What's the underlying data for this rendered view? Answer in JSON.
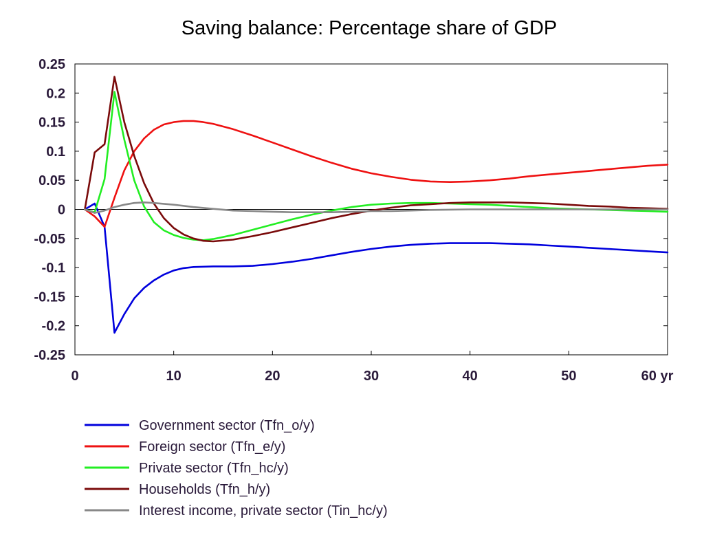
{
  "chart_data": {
    "type": "line",
    "title": "Saving balance: Percentage share of GDP",
    "xlabel": "",
    "ylabel": "",
    "x_unit_label": "yr",
    "xlim": [
      0,
      60
    ],
    "ylim": [
      -0.25,
      0.25
    ],
    "x_ticks": [
      0,
      10,
      20,
      30,
      40,
      50,
      60
    ],
    "x_tick_labels": [
      "0",
      "10",
      "20",
      "30",
      "40",
      "50",
      "60 yr"
    ],
    "y_ticks": [
      0.25,
      0.2,
      0.15,
      0.1,
      0.05,
      0,
      -0.05,
      -0.1,
      -0.15,
      -0.2,
      -0.25
    ],
    "y_tick_labels": [
      "0.25",
      "0.2",
      "0.15",
      "0.1",
      "0.05",
      "0",
      "-0.05",
      "-0.1",
      "-0.15",
      "-0.2",
      "-0.25"
    ],
    "grid": false,
    "zero_line": true,
    "legend_position": "bottom",
    "series": [
      {
        "name": "Government sector (Tfn_o/y)",
        "color": "#0000dd",
        "points": [
          [
            1,
            0
          ],
          [
            2,
            0.01
          ],
          [
            3,
            -0.03
          ],
          [
            4,
            -0.212
          ],
          [
            5,
            -0.18
          ],
          [
            6,
            -0.153
          ],
          [
            7,
            -0.135
          ],
          [
            8,
            -0.122
          ],
          [
            9,
            -0.112
          ],
          [
            10,
            -0.105
          ],
          [
            11,
            -0.101
          ],
          [
            12,
            -0.099
          ],
          [
            14,
            -0.098
          ],
          [
            16,
            -0.098
          ],
          [
            18,
            -0.097
          ],
          [
            20,
            -0.094
          ],
          [
            22,
            -0.09
          ],
          [
            24,
            -0.085
          ],
          [
            26,
            -0.079
          ],
          [
            28,
            -0.073
          ],
          [
            30,
            -0.068
          ],
          [
            32,
            -0.064
          ],
          [
            34,
            -0.061
          ],
          [
            36,
            -0.059
          ],
          [
            38,
            -0.058
          ],
          [
            40,
            -0.058
          ],
          [
            42,
            -0.058
          ],
          [
            44,
            -0.059
          ],
          [
            46,
            -0.06
          ],
          [
            48,
            -0.062
          ],
          [
            50,
            -0.064
          ],
          [
            52,
            -0.066
          ],
          [
            54,
            -0.068
          ],
          [
            56,
            -0.07
          ],
          [
            58,
            -0.072
          ],
          [
            60,
            -0.074
          ]
        ]
      },
      {
        "name": "Foreign sector (Tfn_e/y)",
        "color": "#ee1111",
        "points": [
          [
            1,
            0
          ],
          [
            2,
            -0.012
          ],
          [
            3,
            -0.03
          ],
          [
            4,
            0.02
          ],
          [
            5,
            0.067
          ],
          [
            6,
            0.1
          ],
          [
            7,
            0.122
          ],
          [
            8,
            0.137
          ],
          [
            9,
            0.146
          ],
          [
            10,
            0.15
          ],
          [
            11,
            0.152
          ],
          [
            12,
            0.152
          ],
          [
            13,
            0.15
          ],
          [
            14,
            0.147
          ],
          [
            16,
            0.138
          ],
          [
            18,
            0.127
          ],
          [
            20,
            0.115
          ],
          [
            22,
            0.103
          ],
          [
            24,
            0.091
          ],
          [
            26,
            0.08
          ],
          [
            28,
            0.07
          ],
          [
            30,
            0.062
          ],
          [
            32,
            0.056
          ],
          [
            34,
            0.051
          ],
          [
            36,
            0.048
          ],
          [
            38,
            0.047
          ],
          [
            40,
            0.048
          ],
          [
            42,
            0.05
          ],
          [
            44,
            0.053
          ],
          [
            46,
            0.057
          ],
          [
            48,
            0.06
          ],
          [
            50,
            0.063
          ],
          [
            52,
            0.066
          ],
          [
            54,
            0.069
          ],
          [
            56,
            0.072
          ],
          [
            58,
            0.075
          ],
          [
            60,
            0.077
          ]
        ]
      },
      {
        "name": "Private sector (Tfn_hc/y)",
        "color": "#22ee22",
        "points": [
          [
            1,
            0
          ],
          [
            2,
            -0.005
          ],
          [
            3,
            0.052
          ],
          [
            4,
            0.202
          ],
          [
            5,
            0.12
          ],
          [
            6,
            0.05
          ],
          [
            7,
            0.005
          ],
          [
            8,
            -0.022
          ],
          [
            9,
            -0.036
          ],
          [
            10,
            -0.044
          ],
          [
            11,
            -0.049
          ],
          [
            12,
            -0.052
          ],
          [
            13,
            -0.053
          ],
          [
            14,
            -0.051
          ],
          [
            16,
            -0.044
          ],
          [
            18,
            -0.035
          ],
          [
            20,
            -0.026
          ],
          [
            22,
            -0.017
          ],
          [
            24,
            -0.009
          ],
          [
            26,
            -0.002
          ],
          [
            28,
            0.004
          ],
          [
            30,
            0.008
          ],
          [
            32,
            0.01
          ],
          [
            34,
            0.011
          ],
          [
            36,
            0.011
          ],
          [
            38,
            0.01
          ],
          [
            40,
            0.009
          ],
          [
            42,
            0.008
          ],
          [
            44,
            0.006
          ],
          [
            46,
            0.004
          ],
          [
            48,
            0.002
          ],
          [
            50,
            0.001
          ],
          [
            52,
            0
          ],
          [
            54,
            -0.001
          ],
          [
            56,
            -0.002
          ],
          [
            58,
            -0.003
          ],
          [
            60,
            -0.004
          ]
        ]
      },
      {
        "name": "Households (Tfn_h/y)",
        "color": "#7a0a0a",
        "points": [
          [
            1,
            0
          ],
          [
            2,
            0.098
          ],
          [
            3,
            0.112
          ],
          [
            4,
            0.228
          ],
          [
            5,
            0.15
          ],
          [
            6,
            0.092
          ],
          [
            7,
            0.045
          ],
          [
            8,
            0.01
          ],
          [
            9,
            -0.015
          ],
          [
            10,
            -0.032
          ],
          [
            11,
            -0.043
          ],
          [
            12,
            -0.05
          ],
          [
            13,
            -0.054
          ],
          [
            14,
            -0.055
          ],
          [
            16,
            -0.052
          ],
          [
            18,
            -0.046
          ],
          [
            20,
            -0.039
          ],
          [
            22,
            -0.031
          ],
          [
            24,
            -0.023
          ],
          [
            26,
            -0.015
          ],
          [
            28,
            -0.008
          ],
          [
            30,
            -0.002
          ],
          [
            32,
            0.003
          ],
          [
            34,
            0.007
          ],
          [
            36,
            0.009
          ],
          [
            38,
            0.011
          ],
          [
            40,
            0.012
          ],
          [
            42,
            0.012
          ],
          [
            44,
            0.012
          ],
          [
            46,
            0.011
          ],
          [
            48,
            0.01
          ],
          [
            50,
            0.008
          ],
          [
            52,
            0.006
          ],
          [
            54,
            0.005
          ],
          [
            56,
            0.003
          ],
          [
            58,
            0.002
          ],
          [
            60,
            0.001
          ]
        ]
      },
      {
        "name": "Interest income, private sector (Tin_hc/y)",
        "color": "#888888",
        "points": [
          [
            1,
            0
          ],
          [
            2,
            -0.006
          ],
          [
            3,
            -0.002
          ],
          [
            4,
            0.004
          ],
          [
            5,
            0.008
          ],
          [
            6,
            0.011
          ],
          [
            7,
            0.012
          ],
          [
            8,
            0.011
          ],
          [
            10,
            0.008
          ],
          [
            12,
            0.004
          ],
          [
            14,
            0.001
          ],
          [
            16,
            -0.002
          ],
          [
            18,
            -0.003
          ],
          [
            20,
            -0.004
          ],
          [
            22,
            -0.005
          ],
          [
            24,
            -0.005
          ],
          [
            26,
            -0.005
          ],
          [
            28,
            -0.004
          ],
          [
            30,
            -0.003
          ],
          [
            32,
            -0.003
          ],
          [
            34,
            -0.002
          ],
          [
            36,
            -0.001
          ],
          [
            40,
            0
          ],
          [
            44,
            0
          ],
          [
            48,
            0
          ],
          [
            52,
            0
          ],
          [
            56,
            0
          ],
          [
            60,
            0
          ]
        ]
      }
    ]
  }
}
